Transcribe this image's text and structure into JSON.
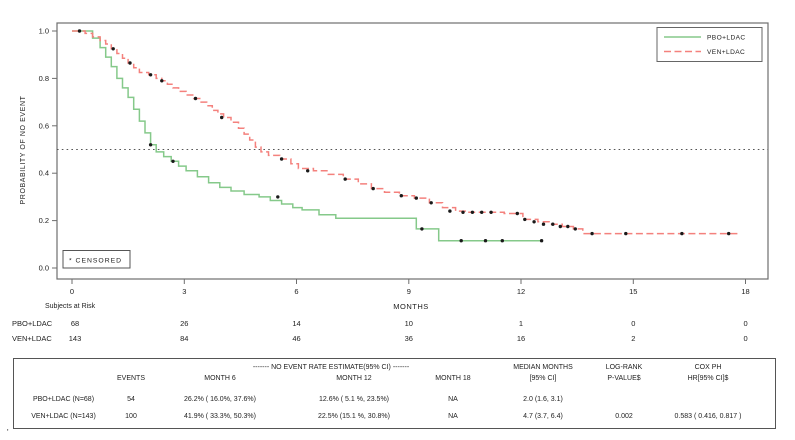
{
  "chart_data": {
    "type": "line",
    "subtype": "kaplan-meier-step",
    "title": "",
    "xlabel": "MONTHS",
    "ylabel": "PROBABILITY OF NO EVENT",
    "xlim": [
      0,
      18
    ],
    "ylim": [
      0.0,
      1.0
    ],
    "xtick_labels": [
      "0",
      "3",
      "6",
      "9",
      "12",
      "15",
      "18"
    ],
    "xticks": [
      0,
      3,
      6,
      9,
      12,
      15,
      18
    ],
    "ytick_labels": [
      "0.0",
      "0.2",
      "0.4",
      "0.6",
      "0.8",
      "1.0"
    ],
    "yticks": [
      0.0,
      0.2,
      0.4,
      0.6,
      0.8,
      1.0
    ],
    "grid": false,
    "reference_line_y": 0.5,
    "censored_note": "*  CENSORED",
    "legend_position": "top-right",
    "censor_color": "#1a1a1a",
    "series": [
      {
        "name": "PBO+LDAC",
        "color": "#85c98a",
        "style": "solid",
        "steps": [
          [
            0,
            1.0
          ],
          [
            0.55,
            0.97
          ],
          [
            0.75,
            0.93
          ],
          [
            0.9,
            0.89
          ],
          [
            1.05,
            0.85
          ],
          [
            1.2,
            0.8
          ],
          [
            1.35,
            0.76
          ],
          [
            1.5,
            0.72
          ],
          [
            1.65,
            0.67
          ],
          [
            1.8,
            0.62
          ],
          [
            1.95,
            0.57
          ],
          [
            2.1,
            0.52
          ],
          [
            2.25,
            0.49
          ],
          [
            2.45,
            0.47
          ],
          [
            2.65,
            0.45
          ],
          [
            2.85,
            0.43
          ],
          [
            3.05,
            0.41
          ],
          [
            3.35,
            0.385
          ],
          [
            3.65,
            0.36
          ],
          [
            3.95,
            0.34
          ],
          [
            4.25,
            0.325
          ],
          [
            4.6,
            0.31
          ],
          [
            5.0,
            0.3
          ],
          [
            5.3,
            0.285
          ],
          [
            5.6,
            0.27
          ],
          [
            5.9,
            0.255
          ],
          [
            6.15,
            0.245
          ],
          [
            6.6,
            0.225
          ],
          [
            7.05,
            0.21
          ],
          [
            9.2,
            0.165
          ],
          [
            9.8,
            0.115
          ],
          [
            12.55,
            0.115
          ]
        ],
        "censor_marks": [
          [
            2.1,
            0.52
          ],
          [
            2.7,
            0.45
          ],
          [
            5.5,
            0.3
          ],
          [
            9.35,
            0.165
          ],
          [
            10.4,
            0.115
          ],
          [
            11.05,
            0.115
          ],
          [
            11.5,
            0.115
          ],
          [
            12.55,
            0.115
          ]
        ]
      },
      {
        "name": "VEN+LDAC",
        "color": "#f4817d",
        "style": "dashed",
        "steps": [
          [
            0,
            1.0
          ],
          [
            0.35,
            0.99
          ],
          [
            0.55,
            0.975
          ],
          [
            0.75,
            0.96
          ],
          [
            0.9,
            0.945
          ],
          [
            1.05,
            0.925
          ],
          [
            1.2,
            0.905
          ],
          [
            1.35,
            0.885
          ],
          [
            1.5,
            0.865
          ],
          [
            1.65,
            0.845
          ],
          [
            1.8,
            0.825
          ],
          [
            2.05,
            0.815
          ],
          [
            2.25,
            0.8
          ],
          [
            2.4,
            0.79
          ],
          [
            2.55,
            0.775
          ],
          [
            2.7,
            0.76
          ],
          [
            2.85,
            0.745
          ],
          [
            3.05,
            0.73
          ],
          [
            3.25,
            0.715
          ],
          [
            3.45,
            0.7
          ],
          [
            3.6,
            0.685
          ],
          [
            3.75,
            0.665
          ],
          [
            3.9,
            0.65
          ],
          [
            4.05,
            0.635
          ],
          [
            4.25,
            0.615
          ],
          [
            4.45,
            0.59
          ],
          [
            4.6,
            0.565
          ],
          [
            4.75,
            0.54
          ],
          [
            4.9,
            0.51
          ],
          [
            5.05,
            0.49
          ],
          [
            5.25,
            0.475
          ],
          [
            5.55,
            0.46
          ],
          [
            5.85,
            0.44
          ],
          [
            6.05,
            0.42
          ],
          [
            6.45,
            0.41
          ],
          [
            6.85,
            0.395
          ],
          [
            7.25,
            0.375
          ],
          [
            7.65,
            0.355
          ],
          [
            8.0,
            0.335
          ],
          [
            8.35,
            0.32
          ],
          [
            8.75,
            0.305
          ],
          [
            9.15,
            0.295
          ],
          [
            9.55,
            0.275
          ],
          [
            9.9,
            0.255
          ],
          [
            10.25,
            0.24
          ],
          [
            10.55,
            0.235
          ],
          [
            11.55,
            0.23
          ],
          [
            12.05,
            0.205
          ],
          [
            12.45,
            0.195
          ],
          [
            12.75,
            0.185
          ],
          [
            13.1,
            0.175
          ],
          [
            13.4,
            0.165
          ],
          [
            13.65,
            0.145
          ],
          [
            17.85,
            0.145
          ]
        ],
        "censor_marks": [
          [
            0.2,
            1.0
          ],
          [
            1.1,
            0.925
          ],
          [
            1.55,
            0.865
          ],
          [
            2.1,
            0.815
          ],
          [
            2.4,
            0.79
          ],
          [
            3.3,
            0.715
          ],
          [
            4.0,
            0.635
          ],
          [
            5.6,
            0.46
          ],
          [
            6.3,
            0.41
          ],
          [
            7.3,
            0.375
          ],
          [
            8.05,
            0.335
          ],
          [
            8.8,
            0.305
          ],
          [
            9.2,
            0.295
          ],
          [
            9.6,
            0.275
          ],
          [
            10.1,
            0.24
          ],
          [
            10.45,
            0.235
          ],
          [
            10.7,
            0.235
          ],
          [
            10.95,
            0.235
          ],
          [
            11.2,
            0.235
          ],
          [
            11.9,
            0.23
          ],
          [
            12.1,
            0.205
          ],
          [
            12.35,
            0.195
          ],
          [
            12.6,
            0.185
          ],
          [
            12.85,
            0.185
          ],
          [
            13.05,
            0.175
          ],
          [
            13.25,
            0.175
          ],
          [
            13.45,
            0.165
          ],
          [
            13.9,
            0.145
          ],
          [
            14.8,
            0.145
          ],
          [
            16.3,
            0.145
          ],
          [
            17.55,
            0.145
          ]
        ]
      }
    ]
  },
  "legend": {
    "items": [
      {
        "label": "PBO+LDAC"
      },
      {
        "label": "VEN+LDAC"
      }
    ]
  },
  "risk_table": {
    "title": "Subjects at Risk",
    "rows": [
      {
        "label": "PBO+LDAC",
        "counts": [
          "68",
          "26",
          "14",
          "10",
          "1",
          "0",
          "0"
        ]
      },
      {
        "label": "VEN+LDAC",
        "counts": [
          "143",
          "84",
          "46",
          "36",
          "16",
          "2",
          "0"
        ]
      }
    ]
  },
  "stats_table": {
    "no_event_span": "------- NO EVENT RATE ESTIMATE(95% CI) -------",
    "events_h": "EVENTS",
    "month6_h": "MONTH 6",
    "month12_h": "MONTH 12",
    "month18_h": "MONTH 18",
    "median_h1": "MEDIAN MONTHS",
    "median_h2": "[95% CI]",
    "logrank_h1": "LOG-RANK",
    "logrank_h2": "P-VALUE$",
    "cox_h1": "COX PH",
    "cox_h2": "HR[95% CI]$",
    "rows": [
      {
        "label": "PBO+LDAC (N=68)",
        "events": "54",
        "m6": "26.2% ( 16.0%,  37.6%)",
        "m12": "12.6% ( 5.1 %,  23.5%)",
        "m18": "NA",
        "median": "2.0 (1.6,  3.1)",
        "pvalue": "",
        "hr": ""
      },
      {
        "label": "VEN+LDAC (N=143)",
        "events": "100",
        "m6": "41.9% ( 33.3%,  50.3%)",
        "m12": "22.5% (15.1 %,  30.8%)",
        "m18": "NA",
        "median": "4.7 (3.7,  6.4)",
        "pvalue": "0.002",
        "hr": "0.583 ( 0.416,  0.817 )"
      }
    ]
  },
  "footnote_mark": "'"
}
